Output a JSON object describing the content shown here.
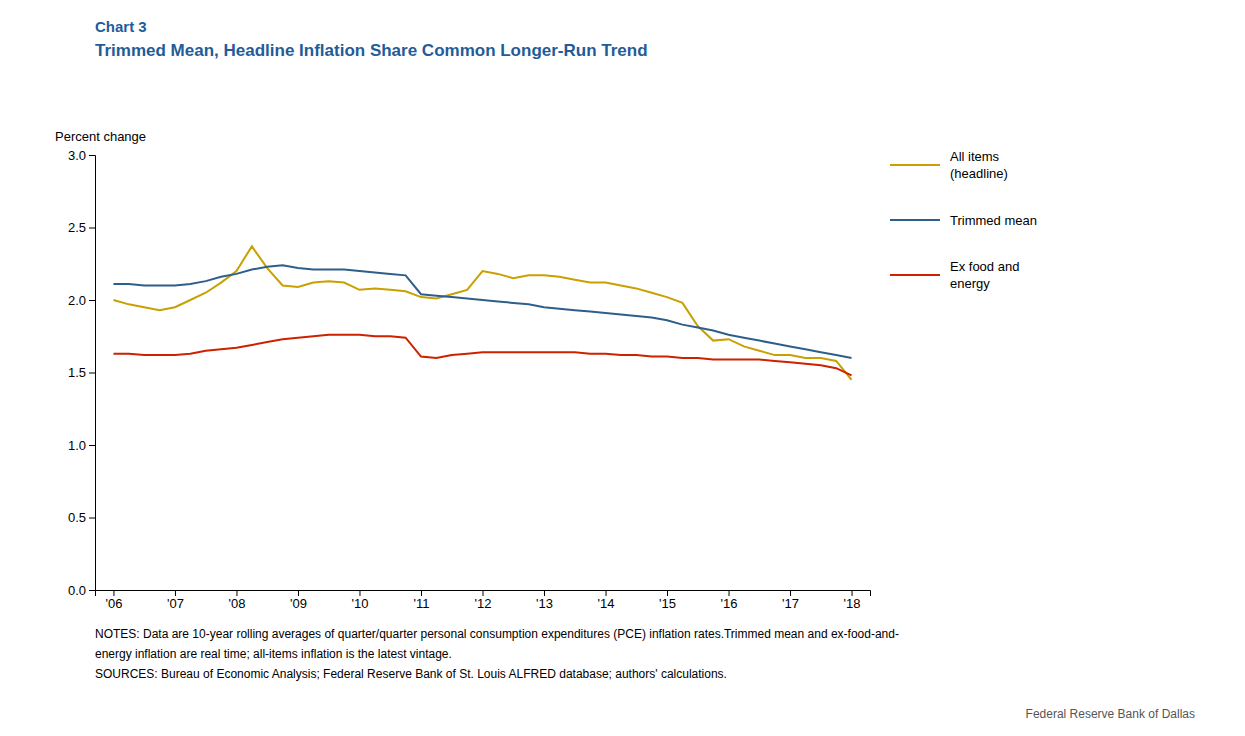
{
  "chart_data": {
    "type": "line",
    "title": "Trimmed Mean, Headline Inflation Share Common  Longer-Run Trend",
    "ylabel": "Percent change",
    "annotations": [
      "Chart 3",
      "NOTES: Data are 10-year rolling averages of quarter/quarter personal consumption expenditures (PCE) inflation rates.Trimmed mean and ex-food-and-",
      "energy inflation are real time; all-items inflation is the latest vintage.",
      "SOURCES: Bureau of Economic Analysis; Federal Reserve Bank of St. Louis ALFRED database; authors' calculations.",
      "Federal Reserve  Bank of Dallas"
    ],
    "x": [
      2006,
      2006.25,
      2006.5,
      2006.75,
      2007,
      2007.25,
      2007.5,
      2007.75,
      2008,
      2008.25,
      2008.5,
      2008.75,
      2009,
      2009.25,
      2009.5,
      2009.75,
      2010,
      2010.25,
      2010.5,
      2010.75,
      2011,
      2011.25,
      2011.5,
      2011.75,
      2012,
      2012.25,
      2012.5,
      2012.75,
      2013,
      2013.25,
      2013.5,
      2013.75,
      2014,
      2014.25,
      2014.5,
      2014.75,
      2015,
      2015.25,
      2015.5,
      2015.75,
      2016,
      2016.25,
      2016.5,
      2016.75,
      2017,
      2017.25,
      2017.5,
      2017.75,
      2018
    ],
    "series": [
      {
        "name": "All items\n(headline)",
        "color": "#C9A000",
        "values": [
          2.0,
          1.97,
          1.95,
          1.93,
          1.95,
          2.0,
          2.05,
          2.12,
          2.2,
          2.37,
          2.22,
          2.1,
          2.09,
          2.12,
          2.13,
          2.12,
          2.07,
          2.08,
          2.07,
          2.06,
          2.02,
          2.01,
          2.04,
          2.07,
          2.2,
          2.18,
          2.15,
          2.17,
          2.17,
          2.16,
          2.14,
          2.12,
          2.12,
          2.1,
          2.08,
          2.05,
          2.02,
          1.98,
          1.82,
          1.72,
          1.73,
          1.68,
          1.65,
          1.62,
          1.62,
          1.6,
          1.6,
          1.58,
          1.45
        ]
      },
      {
        "name": "Trimmed mean",
        "color": "#2E5F8A",
        "values": [
          2.11,
          2.11,
          2.1,
          2.1,
          2.1,
          2.11,
          2.13,
          2.16,
          2.18,
          2.21,
          2.23,
          2.24,
          2.22,
          2.21,
          2.21,
          2.21,
          2.2,
          2.19,
          2.18,
          2.17,
          2.04,
          2.03,
          2.02,
          2.01,
          2.0,
          1.99,
          1.98,
          1.97,
          1.95,
          1.94,
          1.93,
          1.92,
          1.91,
          1.9,
          1.89,
          1.88,
          1.86,
          1.83,
          1.81,
          1.79,
          1.76,
          1.74,
          1.72,
          1.7,
          1.68,
          1.66,
          1.64,
          1.62,
          1.6
        ]
      },
      {
        "name": "Ex food and\nenergy",
        "color": "#CC2200",
        "values": [
          1.63,
          1.63,
          1.62,
          1.62,
          1.62,
          1.63,
          1.65,
          1.66,
          1.67,
          1.69,
          1.71,
          1.73,
          1.74,
          1.75,
          1.76,
          1.76,
          1.76,
          1.75,
          1.75,
          1.74,
          1.61,
          1.6,
          1.62,
          1.63,
          1.64,
          1.64,
          1.64,
          1.64,
          1.64,
          1.64,
          1.64,
          1.63,
          1.63,
          1.62,
          1.62,
          1.61,
          1.61,
          1.6,
          1.6,
          1.59,
          1.59,
          1.59,
          1.59,
          1.58,
          1.57,
          1.56,
          1.55,
          1.53,
          1.48
        ]
      }
    ],
    "xlim": [
      2005.7,
      2018.3
    ],
    "xticks": [
      {
        "value": 2006,
        "label": "'06"
      },
      {
        "value": 2007,
        "label": "'07"
      },
      {
        "value": 2008,
        "label": "'08"
      },
      {
        "value": 2009,
        "label": "'09"
      },
      {
        "value": 2010,
        "label": "'10"
      },
      {
        "value": 2011,
        "label": "'11"
      },
      {
        "value": 2012,
        "label": "'12"
      },
      {
        "value": 2013,
        "label": "'13"
      },
      {
        "value": 2014,
        "label": "'14"
      },
      {
        "value": 2015,
        "label": "'15"
      },
      {
        "value": 2016,
        "label": "'16"
      },
      {
        "value": 2017,
        "label": "'17"
      },
      {
        "value": 2018,
        "label": "'18"
      }
    ],
    "ylim": [
      0.0,
      3.0
    ],
    "yticks": [
      {
        "value": 0,
        "label": "0.0"
      },
      {
        "value": 0.5,
        "label": "0.5"
      },
      {
        "value": 1,
        "label": "1.0"
      },
      {
        "value": 1.5,
        "label": "1.5"
      },
      {
        "value": 2,
        "label": "2.0"
      },
      {
        "value": 2.5,
        "label": "2.5"
      },
      {
        "value": 3,
        "label": "3.0"
      }
    ],
    "grid": false,
    "legend": "right"
  }
}
